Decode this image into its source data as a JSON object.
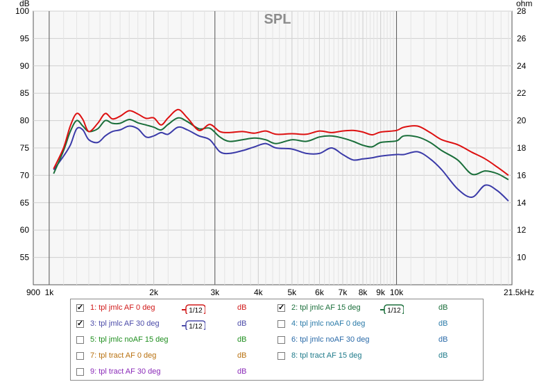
{
  "chart_data": {
    "type": "line",
    "title": "SPL",
    "x_scale": "log",
    "xlim": [
      900,
      21500
    ],
    "x_ticks": [
      {
        "v": 900,
        "label": "900"
      },
      {
        "v": 1000,
        "label": "1k"
      },
      {
        "v": 2000,
        "label": "2k"
      },
      {
        "v": 3000,
        "label": "3k"
      },
      {
        "v": 4000,
        "label": "4k"
      },
      {
        "v": 5000,
        "label": "5k"
      },
      {
        "v": 6000,
        "label": "6k"
      },
      {
        "v": 7000,
        "label": "7k"
      },
      {
        "v": 8000,
        "label": "8k"
      },
      {
        "v": 9000,
        "label": "9k"
      },
      {
        "v": 10000,
        "label": "10k"
      },
      {
        "v": 21500,
        "label": "21.5kHz"
      }
    ],
    "y_left": {
      "unit": "dB",
      "lim": [
        50,
        100
      ],
      "ticks": [
        55,
        60,
        65,
        70,
        75,
        80,
        85,
        90,
        95,
        100
      ]
    },
    "y_right": {
      "unit": "ohm",
      "lim": [
        8,
        28
      ],
      "ticks": [
        10,
        12,
        14,
        16,
        18,
        20,
        22,
        24,
        26,
        28
      ]
    },
    "grid": true,
    "series": [
      {
        "name": "1: tpl jmlc AF 0 deg",
        "color": "#dd1010",
        "points": [
          [
            1030,
            71.2
          ],
          [
            1100,
            75
          ],
          [
            1150,
            79
          ],
          [
            1200,
            81.3
          ],
          [
            1250,
            80.2
          ],
          [
            1300,
            78
          ],
          [
            1380,
            79.5
          ],
          [
            1450,
            81.3
          ],
          [
            1520,
            80.3
          ],
          [
            1600,
            80.8
          ],
          [
            1700,
            81.8
          ],
          [
            1800,
            81.2
          ],
          [
            1900,
            80.4
          ],
          [
            2000,
            80.5
          ],
          [
            2100,
            79.2
          ],
          [
            2200,
            80.5
          ],
          [
            2350,
            82
          ],
          [
            2500,
            80.5
          ],
          [
            2700,
            78.2
          ],
          [
            2900,
            79.3
          ],
          [
            3100,
            78
          ],
          [
            3300,
            77.8
          ],
          [
            3600,
            78
          ],
          [
            3900,
            77.7
          ],
          [
            4200,
            78.1
          ],
          [
            4500,
            77.5
          ],
          [
            5000,
            77.6
          ],
          [
            5500,
            77.5
          ],
          [
            6000,
            78.1
          ],
          [
            6500,
            77.8
          ],
          [
            7000,
            78.1
          ],
          [
            7500,
            78.2
          ],
          [
            8000,
            77.9
          ],
          [
            8500,
            77.4
          ],
          [
            9000,
            77.9
          ],
          [
            10000,
            78.2
          ],
          [
            10500,
            78.8
          ],
          [
            11500,
            79
          ],
          [
            12500,
            77.8
          ],
          [
            13500,
            76.5
          ],
          [
            15000,
            75.6
          ],
          [
            16500,
            74.2
          ],
          [
            18000,
            73
          ],
          [
            19500,
            71.5
          ],
          [
            21000,
            70
          ]
        ]
      },
      {
        "name": "2: tpl jmlc AF 15 deg",
        "color": "#1a6e3a",
        "points": [
          [
            1030,
            70.3
          ],
          [
            1100,
            74.5
          ],
          [
            1150,
            78
          ],
          [
            1200,
            80
          ],
          [
            1250,
            79
          ],
          [
            1300,
            78
          ],
          [
            1380,
            78.5
          ],
          [
            1450,
            80
          ],
          [
            1520,
            79.5
          ],
          [
            1600,
            79.5
          ],
          [
            1700,
            80.2
          ],
          [
            1800,
            79.6
          ],
          [
            1900,
            79.2
          ],
          [
            2000,
            78.8
          ],
          [
            2100,
            78.3
          ],
          [
            2200,
            79.3
          ],
          [
            2350,
            80.5
          ],
          [
            2500,
            79.8
          ],
          [
            2700,
            78.5
          ],
          [
            2900,
            78.6
          ],
          [
            3100,
            77
          ],
          [
            3300,
            76.2
          ],
          [
            3600,
            76.5
          ],
          [
            3900,
            76.8
          ],
          [
            4200,
            76.5
          ],
          [
            4500,
            75.8
          ],
          [
            5000,
            76.5
          ],
          [
            5500,
            76.2
          ],
          [
            6000,
            77
          ],
          [
            6500,
            77.2
          ],
          [
            7000,
            76.8
          ],
          [
            7500,
            76.2
          ],
          [
            8000,
            75.5
          ],
          [
            8500,
            75.2
          ],
          [
            9000,
            76
          ],
          [
            10000,
            76.3
          ],
          [
            10500,
            77.2
          ],
          [
            11500,
            77
          ],
          [
            12500,
            76
          ],
          [
            13500,
            74.5
          ],
          [
            15000,
            72.8
          ],
          [
            16500,
            70.2
          ],
          [
            18000,
            70.8
          ],
          [
            19500,
            70.3
          ],
          [
            21000,
            69.2
          ]
        ]
      },
      {
        "name": "3: tpl jmlc AF 30 deg",
        "color": "#3a3aa8",
        "points": [
          [
            1030,
            71
          ],
          [
            1100,
            73.5
          ],
          [
            1150,
            75.5
          ],
          [
            1200,
            78.5
          ],
          [
            1250,
            78.3
          ],
          [
            1300,
            76.5
          ],
          [
            1380,
            76
          ],
          [
            1450,
            77.2
          ],
          [
            1520,
            78
          ],
          [
            1600,
            78.3
          ],
          [
            1700,
            79
          ],
          [
            1800,
            78.5
          ],
          [
            1900,
            77
          ],
          [
            2000,
            77.2
          ],
          [
            2100,
            77.8
          ],
          [
            2200,
            77.5
          ],
          [
            2350,
            78.8
          ],
          [
            2500,
            78.3
          ],
          [
            2700,
            77.2
          ],
          [
            2900,
            76.5
          ],
          [
            3100,
            74.3
          ],
          [
            3300,
            74
          ],
          [
            3600,
            74.5
          ],
          [
            3900,
            75.2
          ],
          [
            4200,
            75.8
          ],
          [
            4500,
            75
          ],
          [
            5000,
            74.8
          ],
          [
            5500,
            74
          ],
          [
            6000,
            74
          ],
          [
            6500,
            75
          ],
          [
            7000,
            73.8
          ],
          [
            7500,
            72.8
          ],
          [
            8000,
            73
          ],
          [
            8500,
            73.2
          ],
          [
            9000,
            73.5
          ],
          [
            10000,
            73.8
          ],
          [
            10500,
            73.8
          ],
          [
            11500,
            74.3
          ],
          [
            12500,
            73
          ],
          [
            13500,
            71
          ],
          [
            15000,
            67.5
          ],
          [
            16500,
            66
          ],
          [
            18000,
            68.2
          ],
          [
            19500,
            67.2
          ],
          [
            21000,
            65.3
          ]
        ]
      }
    ]
  },
  "legend": {
    "items": [
      {
        "label": "1: tpl jmlc AF 0 deg",
        "unit": "dB",
        "color": "#d01818",
        "checked": true,
        "smoothing": "1/12"
      },
      {
        "label": "2: tpl jmlc AF 15 deg",
        "unit": "dB",
        "color": "#1a6e3a",
        "checked": true,
        "smoothing": "1/12"
      },
      {
        "label": "3: tpl jmlc AF 30 deg",
        "unit": "dB",
        "color": "#4a4aa8",
        "checked": true,
        "smoothing": "1/12"
      },
      {
        "label": "4: tpl jmlc noAF 0 deg",
        "unit": "dB",
        "color": "#2a7aa8",
        "checked": false,
        "smoothing": ""
      },
      {
        "label": "5: tpl jmlc noAF 15 deg",
        "unit": "dB",
        "color": "#1e8e1e",
        "checked": false,
        "smoothing": ""
      },
      {
        "label": "6: tpl jmlc noAF 30 deg",
        "unit": "dB",
        "color": "#2a6aa8",
        "checked": false,
        "smoothing": ""
      },
      {
        "label": "7: tpl tract AF 0 deg",
        "unit": "dB",
        "color": "#b8700e",
        "checked": false,
        "smoothing": ""
      },
      {
        "label": "8: tpl tract AF 15 deg",
        "unit": "dB",
        "color": "#1e7a8a",
        "checked": false,
        "smoothing": ""
      },
      {
        "label": "9: tpl tract AF 30 deg",
        "unit": "dB",
        "color": "#8a2ab8",
        "checked": false,
        "smoothing": ""
      }
    ]
  }
}
